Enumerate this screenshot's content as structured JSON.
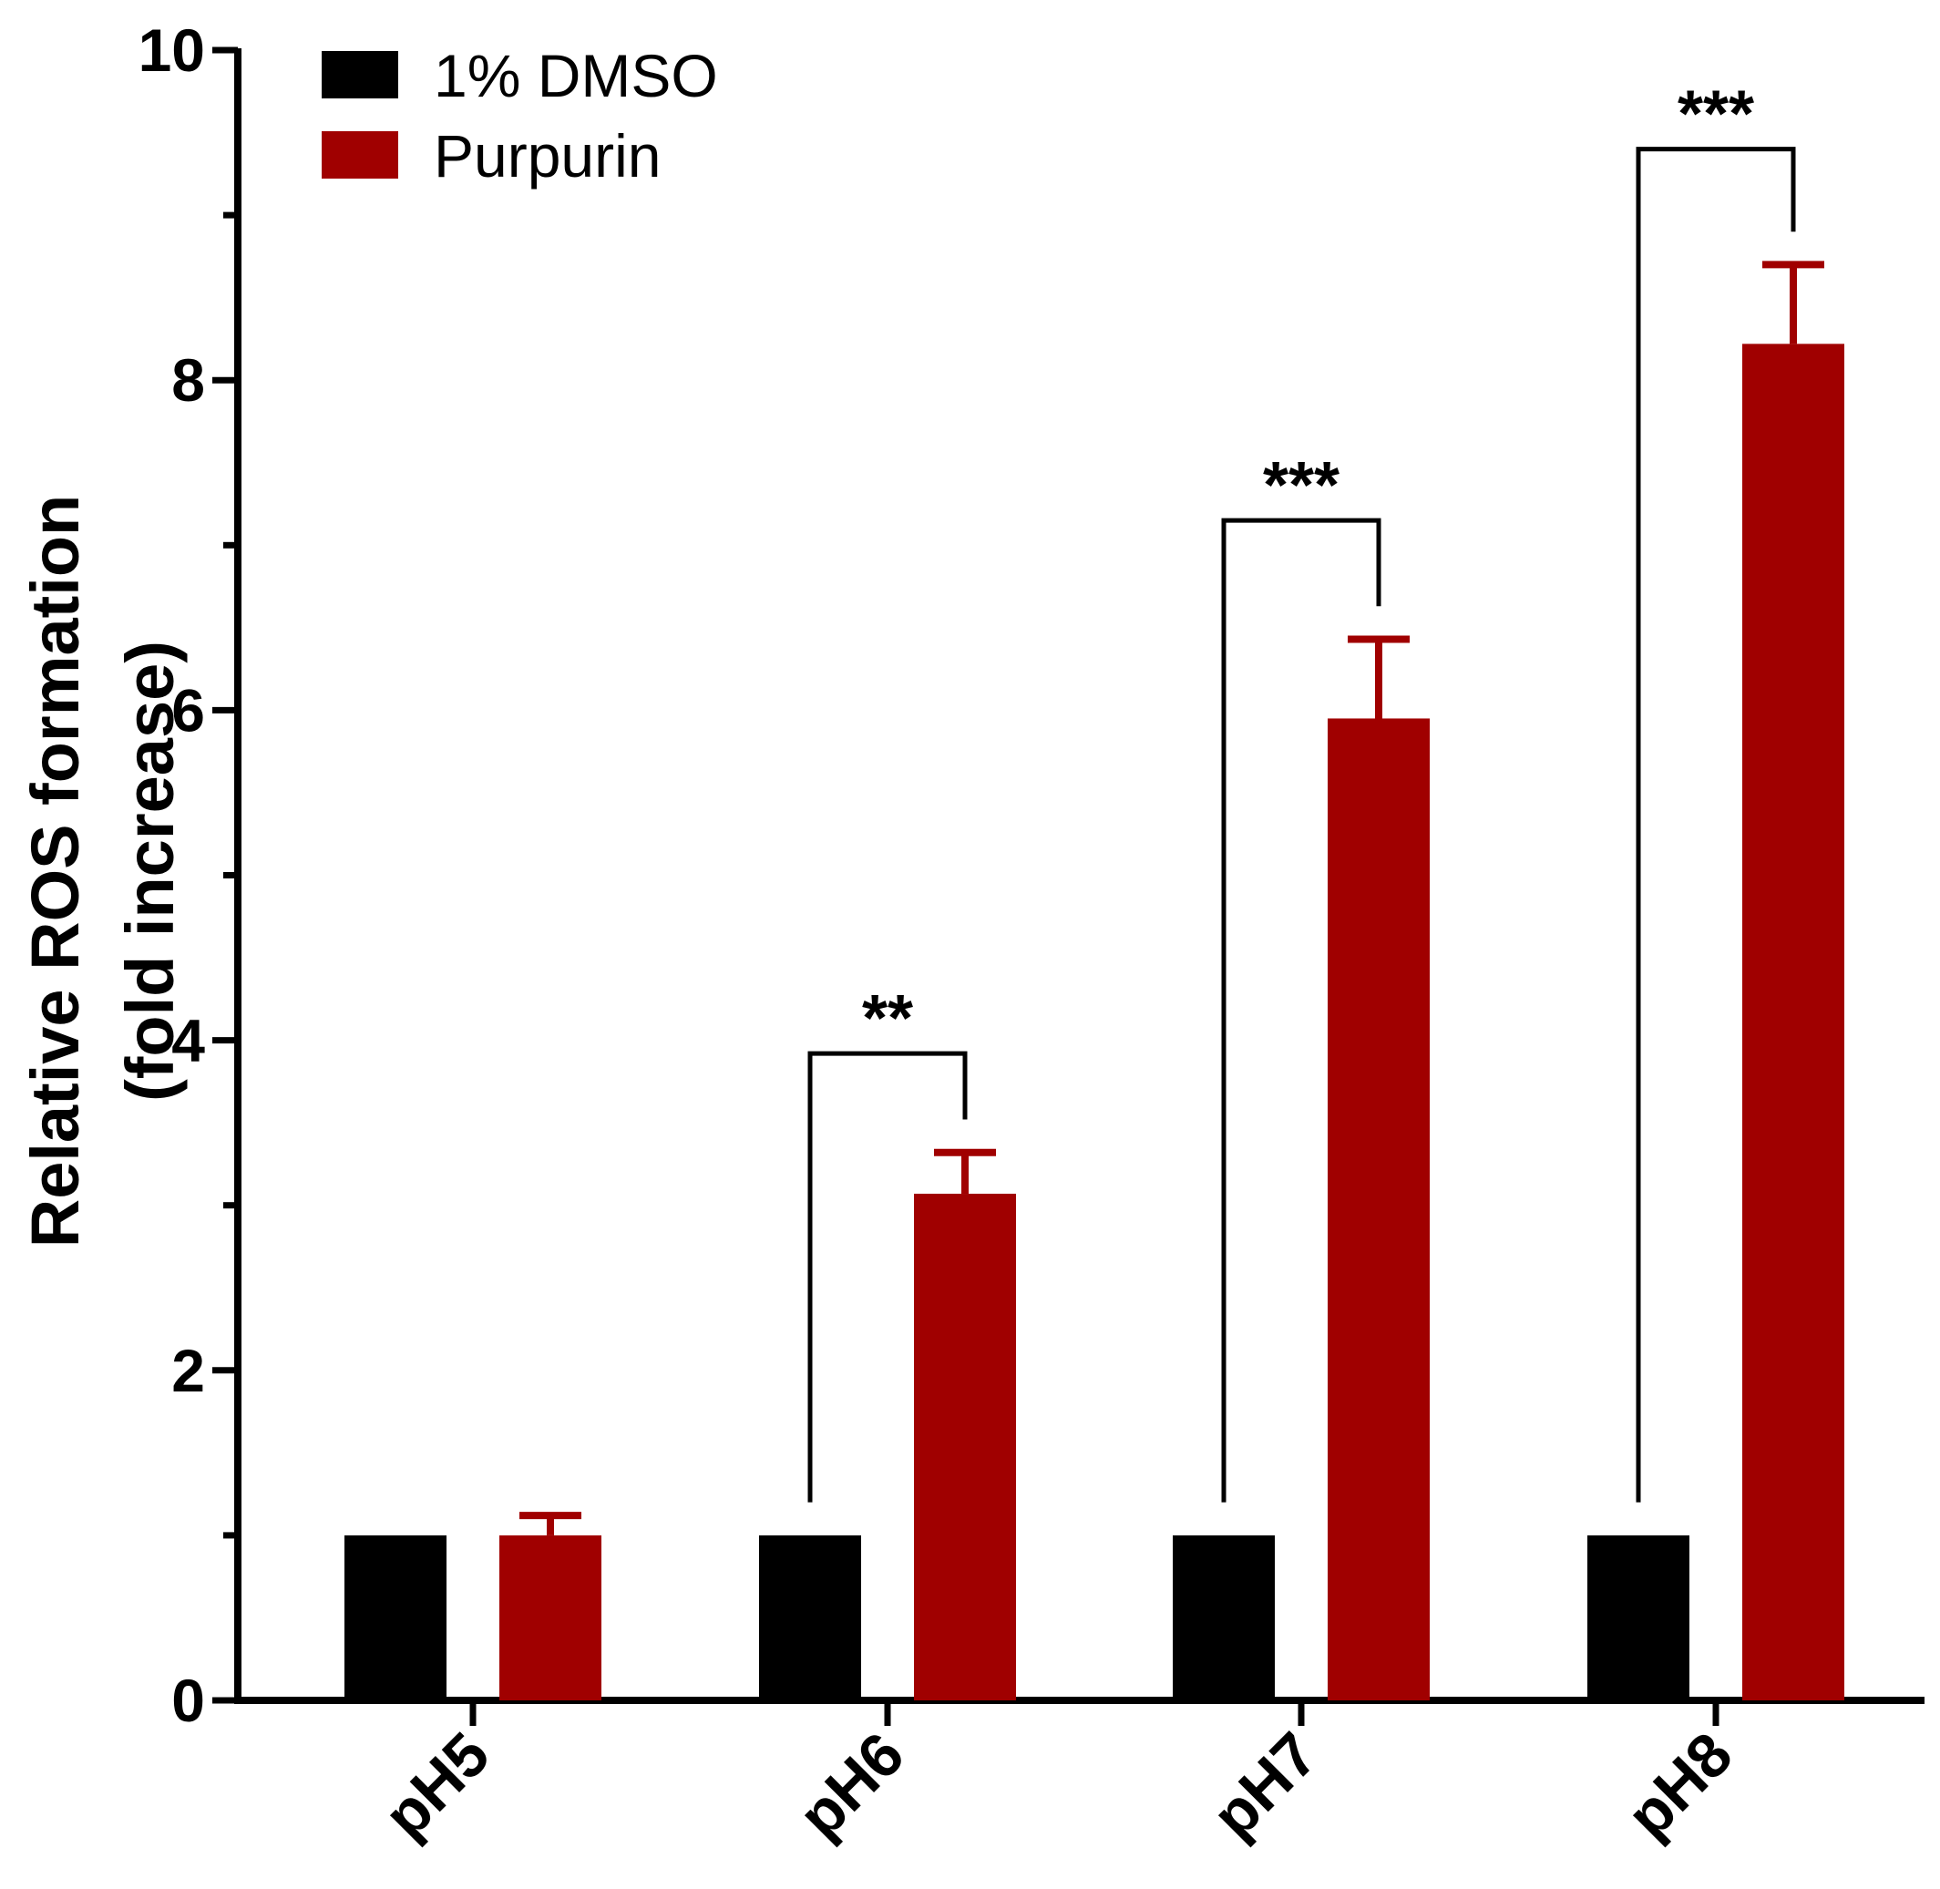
{
  "chart_data": {
    "type": "bar",
    "title": "",
    "xlabel": "",
    "ylabel_line1": "Relative ROS formation",
    "ylabel_line2": "(fold increase)",
    "ylim": [
      0,
      10
    ],
    "yticks": [
      0,
      2,
      4,
      6,
      8,
      10
    ],
    "categories": [
      "pH5",
      "pH6",
      "pH7",
      "pH8"
    ],
    "series": [
      {
        "name": "1% DMSO",
        "color": "#000000",
        "values": [
          1.0,
          1.0,
          1.0,
          1.0
        ],
        "errors": [
          0,
          0,
          0,
          0
        ]
      },
      {
        "name": "Purpurin",
        "color": "#a00000",
        "values": [
          1.0,
          3.07,
          5.95,
          8.22
        ],
        "errors": [
          0.12,
          0.25,
          0.48,
          0.48
        ]
      }
    ],
    "significance": [
      {
        "category": "pH6",
        "label": "**",
        "bracket_y": 3.92
      },
      {
        "category": "pH7",
        "label": "***",
        "bracket_y": 7.15
      },
      {
        "category": "pH8",
        "label": "***",
        "bracket_y": 9.4
      }
    ],
    "legend_position": "top-left"
  }
}
